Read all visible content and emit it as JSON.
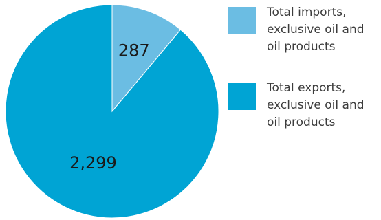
{
  "chart_data": {
    "type": "pie",
    "slices": [
      {
        "name": "Total imports,\nexclusive oil and\noil products",
        "value": 287,
        "label": "287",
        "color": "#6bbde3"
      },
      {
        "name": "Total exports,\nexclusive oil and\noil products",
        "value": 2299,
        "label": "2,299",
        "color": "#00a4d4"
      }
    ],
    "legend_position": "right",
    "start_angle": "12 o'clock",
    "direction": "clockwise"
  }
}
